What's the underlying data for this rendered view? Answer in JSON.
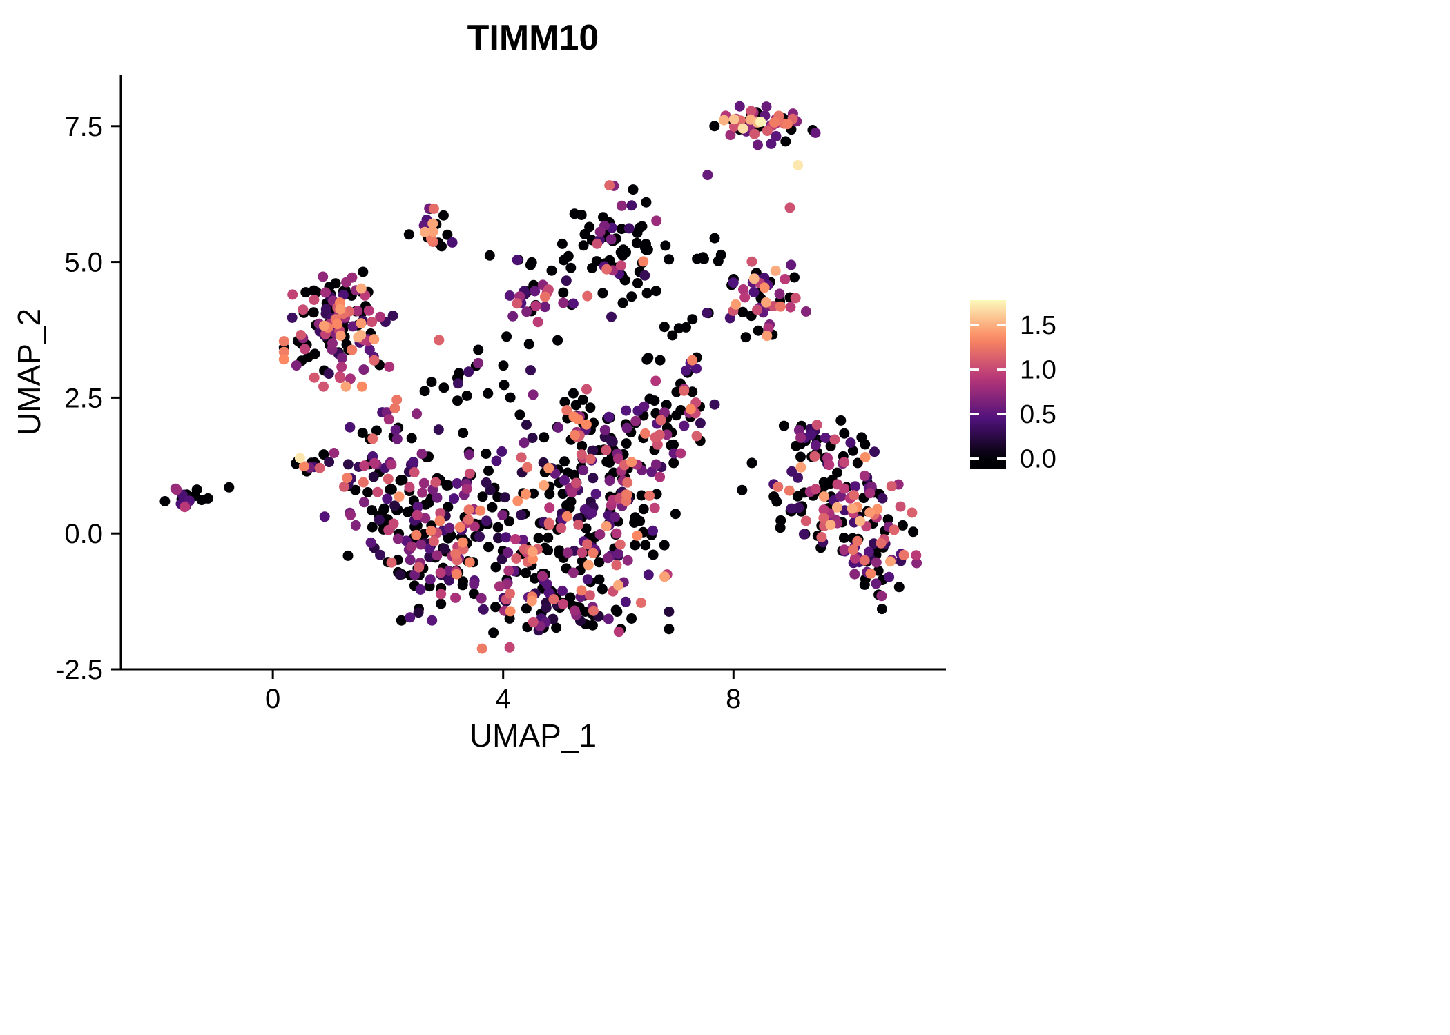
{
  "chart_data": {
    "type": "scatter",
    "title": "TIMM10",
    "xlabel": "UMAP_1",
    "ylabel": "UMAP_2",
    "xlim": [
      -2.64,
      11.69
    ],
    "ylim": [
      -2.5,
      8.45
    ],
    "grid": false,
    "background": "#ffffff",
    "axis_color": "#000000",
    "point_radius": 7.5,
    "seed": 20240601,
    "x_ticks": [
      {
        "v": 0,
        "label": "0"
      },
      {
        "v": 4,
        "label": "4"
      },
      {
        "v": 8,
        "label": "8"
      }
    ],
    "y_ticks": [
      {
        "v": -2.5,
        "label": "-2.5"
      },
      {
        "v": 0.0,
        "label": "0.0"
      },
      {
        "v": 2.5,
        "label": "2.5"
      },
      {
        "v": 5.0,
        "label": "5.0"
      },
      {
        "v": 7.5,
        "label": "7.5"
      }
    ],
    "legend": {
      "type": "colorbar",
      "position": "right",
      "colormap": "magma",
      "value_range": [
        0,
        1.8
      ],
      "domain": [
        -0.12,
        1.78
      ],
      "ticks": [
        {
          "v": 0.0,
          "label": "0.0"
        },
        {
          "v": 0.5,
          "label": "0.5"
        },
        {
          "v": 1.0,
          "label": "1.0"
        },
        {
          "v": 1.5,
          "label": "1.5"
        }
      ],
      "stops": [
        [
          0,
          "#000004"
        ],
        [
          0.25,
          "#50127b"
        ],
        [
          0.5,
          "#b63679"
        ],
        [
          0.75,
          "#fb8861"
        ],
        [
          1,
          "#fcfdbf"
        ]
      ]
    },
    "clusters": [
      {
        "name": "top-right",
        "cx": 8.5,
        "cy": 7.55,
        "sx": 0.42,
        "sy": 0.18,
        "n": 52,
        "zero_frac": 0.22,
        "expr_min": 0.5,
        "expr_max": 1.85
      },
      {
        "name": "top-mid",
        "cx": 2.76,
        "cy": 5.63,
        "sx": 0.18,
        "sy": 0.3,
        "n": 20,
        "zero_frac": 0.3,
        "expr_min": 0.4,
        "expr_max": 1.5
      },
      {
        "name": "upper-mid",
        "cx": 6.0,
        "cy": 5.2,
        "sx": 0.45,
        "sy": 0.55,
        "n": 72,
        "zero_frac": 0.6,
        "expr_min": 0.3,
        "expr_max": 1.35
      },
      {
        "name": "right-mid",
        "cx": 8.6,
        "cy": 4.3,
        "sx": 0.3,
        "sy": 0.35,
        "n": 42,
        "zero_frac": 0.3,
        "expr_min": 0.35,
        "expr_max": 1.6
      },
      {
        "name": "left",
        "cx": 1.14,
        "cy": 3.85,
        "sx": 0.43,
        "sy": 0.52,
        "n": 125,
        "zero_frac": 0.4,
        "expr_min": 0.3,
        "expr_max": 1.55
      },
      {
        "name": "mid-small",
        "cx": 4.56,
        "cy": 4.29,
        "sx": 0.22,
        "sy": 0.18,
        "n": 22,
        "zero_frac": 0.3,
        "expr_min": 0.3,
        "expr_max": 1.25
      },
      {
        "name": "far-left",
        "cx": -1.5,
        "cy": 0.68,
        "sx": 0.17,
        "sy": 0.1,
        "n": 16,
        "zero_frac": 0.35,
        "expr_min": 0.4,
        "expr_max": 1.6
      },
      {
        "name": "left-strip",
        "cx": 0.6,
        "cy": 1.28,
        "sx": 0.16,
        "sy": 0.08,
        "n": 13,
        "zero_frac": 0.4,
        "expr_min": 0.3,
        "expr_max": 1.75
      },
      {
        "name": "central-a",
        "cx": 2.0,
        "cy": 0.8,
        "sx": 0.5,
        "sy": 0.65,
        "n": 85,
        "zero_frac": 0.45,
        "expr_min": 0.2,
        "expr_max": 1.45
      },
      {
        "name": "central-b",
        "cx": 3.3,
        "cy": 0.2,
        "sx": 0.55,
        "sy": 0.75,
        "n": 100,
        "zero_frac": 0.45,
        "expr_min": 0.2,
        "expr_max": 1.45
      },
      {
        "name": "central-c",
        "cx": 4.8,
        "cy": 0.0,
        "sx": 0.65,
        "sy": 0.8,
        "n": 135,
        "zero_frac": 0.45,
        "expr_min": 0.2,
        "expr_max": 1.5
      },
      {
        "name": "central-d",
        "cx": 6.2,
        "cy": 0.5,
        "sx": 0.5,
        "sy": 0.75,
        "n": 95,
        "zero_frac": 0.45,
        "expr_min": 0.2,
        "expr_max": 1.5
      },
      {
        "name": "central-bottom",
        "cx": 4.9,
        "cy": -1.35,
        "sx": 0.9,
        "sy": 0.35,
        "n": 70,
        "zero_frac": 0.5,
        "expr_min": 0.2,
        "expr_max": 1.3
      },
      {
        "name": "central-top",
        "cx": 5.5,
        "cy": 1.95,
        "sx": 0.55,
        "sy": 0.4,
        "n": 55,
        "zero_frac": 0.45,
        "expr_min": 0.2,
        "expr_max": 1.45
      },
      {
        "name": "central-topright",
        "cx": 6.9,
        "cy": 2.2,
        "sx": 0.35,
        "sy": 0.45,
        "n": 38,
        "zero_frac": 0.4,
        "expr_min": 0.3,
        "expr_max": 1.4
      },
      {
        "name": "central-left",
        "cx": 2.6,
        "cy": -0.5,
        "sx": 0.4,
        "sy": 0.5,
        "n": 45,
        "zero_frac": 0.5,
        "expr_min": 0.2,
        "expr_max": 1.25
      },
      {
        "name": "right-big",
        "cx": 9.8,
        "cy": 0.45,
        "sx": 0.5,
        "sy": 0.6,
        "n": 115,
        "zero_frac": 0.4,
        "expr_min": 0.3,
        "expr_max": 1.6
      },
      {
        "name": "right-upper",
        "cx": 9.5,
        "cy": 1.7,
        "sx": 0.3,
        "sy": 0.25,
        "n": 28,
        "zero_frac": 0.45,
        "expr_min": 0.3,
        "expr_max": 1.4
      },
      {
        "name": "right-lower",
        "cx": 10.55,
        "cy": -0.4,
        "sx": 0.3,
        "sy": 0.45,
        "n": 42,
        "zero_frac": 0.45,
        "expr_min": 0.3,
        "expr_max": 1.5
      },
      {
        "name": "noise-mid",
        "cx": 3.7,
        "cy": 3.1,
        "sx": 0.8,
        "sy": 0.45,
        "n": 22,
        "zero_frac": 0.6,
        "expr_min": 0.3,
        "expr_max": 1.2
      },
      {
        "name": "noise-rightmid",
        "cx": 7.3,
        "cy": 3.7,
        "sx": 0.55,
        "sy": 0.65,
        "n": 20,
        "zero_frac": 0.65,
        "expr_min": 0.3,
        "expr_max": 1.1
      },
      {
        "name": "noise-topband",
        "cx": 4.3,
        "cy": 5.05,
        "sx": 0.6,
        "sy": 0.12,
        "n": 7,
        "zero_frac": 0.8,
        "expr_min": 0.3,
        "expr_max": 0.9
      },
      {
        "name": "noise-leftgap",
        "cx": 2.15,
        "cy": 2.3,
        "sx": 0.35,
        "sy": 0.35,
        "n": 12,
        "zero_frac": 0.5,
        "expr_min": 0.3,
        "expr_max": 1.3
      },
      {
        "name": "noise-bridge",
        "cx": 7.6,
        "cy": 4.8,
        "sx": 0.3,
        "sy": 0.3,
        "n": 6,
        "zero_frac": 0.7,
        "expr_min": 0.3,
        "expr_max": 0.9
      }
    ],
    "extra_points": [
      [
        9.12,
        6.78,
        1.72
      ],
      [
        8.98,
        6.0,
        1.05
      ],
      [
        7.55,
        6.6,
        0.55
      ],
      [
        7.67,
        7.5,
        0
      ],
      [
        -0.76,
        0.85,
        0
      ],
      [
        8.32,
        1.3,
        0
      ],
      [
        8.15,
        0.8,
        0
      ]
    ]
  }
}
